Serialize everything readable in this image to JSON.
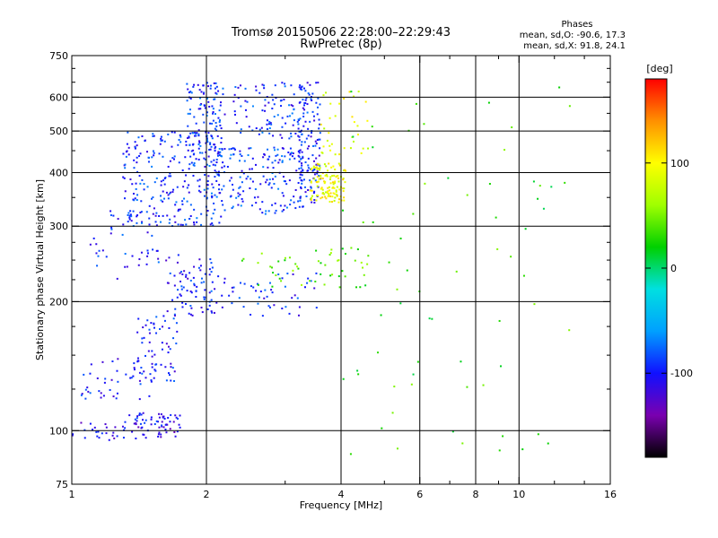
{
  "chart_data": {
    "type": "scatter",
    "title": "Tromsø 20150506 22:28:00–22:29:43",
    "subtitle": "RwPretec (8p)",
    "xlabel": "Frequency [MHz]",
    "ylabel": "Stationary phase Virtual Height [km]",
    "x_scale": "log",
    "y_scale": "log",
    "xlim": [
      1,
      16
    ],
    "ylim": [
      75,
      750
    ],
    "x_ticks": [
      1,
      2,
      4,
      6,
      8,
      10,
      16
    ],
    "x_tick_labels": [
      "1",
      "2",
      "4",
      "6",
      "8",
      "10",
      "16"
    ],
    "y_ticks": [
      75,
      100,
      200,
      300,
      400,
      500,
      600,
      750
    ],
    "y_tick_labels": [
      "75",
      "100",
      "200",
      "300",
      "400",
      "500",
      "600",
      "750"
    ],
    "x_minor_ticks": [
      3,
      5,
      7,
      9,
      12,
      14
    ],
    "y_minor_ticks": [
      125,
      150,
      175,
      225,
      250,
      275,
      350,
      450,
      550,
      650,
      700
    ],
    "grid_x": [
      2,
      4,
      6,
      8,
      10
    ],
    "grid_y": [
      100,
      200,
      300,
      400,
      500,
      600
    ],
    "phase_stats": {
      "header": "Phases",
      "line_o": "mean, sd,O: -90.6, 17.3",
      "line_x": "mean, sd,X:  91.8, 24.1"
    },
    "colorbar": {
      "label": "[deg]",
      "range": [
        -180,
        180
      ],
      "ticks": [
        100,
        0,
        -100
      ],
      "tick_labels": [
        "100",
        "0",
        "-100"
      ],
      "colors": [
        "#000000",
        "#7a00b0",
        "#1010ff",
        "#00a0ff",
        "#00e0e0",
        "#00d000",
        "#a0ff00",
        "#ffff00",
        "#ff9000",
        "#ff0000"
      ]
    },
    "traces": [
      {
        "name": "",
        "x_range": [
          1.0,
          1.75
        ],
        "y_range": [
          95,
          105
        ],
        "phase": -110,
        "density": 55
      },
      {
        "name": "",
        "x_range": [
          1.3,
          1.75
        ],
        "y_range": [
          103,
          110
        ],
        "phase": -105,
        "density": 40
      },
      {
        "name": "",
        "x_range": [
          1.05,
          1.55
        ],
        "y_range": [
          118,
          150
        ],
        "phase": -100,
        "density": 50
      },
      {
        "name": "",
        "x_range": [
          1.4,
          1.72
        ],
        "y_range": [
          130,
          185
        ],
        "phase": -98,
        "density": 55
      },
      {
        "name": "",
        "x_range": [
          1.6,
          2.1
        ],
        "y_range": [
          185,
          260
        ],
        "phase": -100,
        "density": 55
      },
      {
        "name": "",
        "x_range": [
          1.7,
          3.6
        ],
        "y_range": [
          185,
          235
        ],
        "phase": -95,
        "density": 80
      },
      {
        "name": "",
        "x_range": [
          1.1,
          1.6
        ],
        "y_range": [
          220,
          330
        ],
        "phase": -95,
        "density": 45
      },
      {
        "name": "",
        "x_range": [
          1.3,
          2.2
        ],
        "y_range": [
          300,
          500
        ],
        "phase": -92,
        "density": 260
      },
      {
        "name": "",
        "x_range": [
          1.8,
          2.2
        ],
        "y_range": [
          450,
          650
        ],
        "phase": -92,
        "density": 110
      },
      {
        "name": "",
        "x_range": [
          2.0,
          3.3
        ],
        "y_range": [
          320,
          460
        ],
        "phase": -90,
        "density": 180
      },
      {
        "name": "",
        "x_range": [
          2.3,
          3.4
        ],
        "y_range": [
          480,
          650
        ],
        "phase": -92,
        "density": 95
      },
      {
        "name": "",
        "x_range": [
          3.2,
          3.6
        ],
        "y_range": [
          340,
          650
        ],
        "phase": -98,
        "density": 130
      },
      {
        "name": "",
        "x_range": [
          3.4,
          4.1
        ],
        "y_range": [
          340,
          420
        ],
        "phase": 95,
        "density": 120
      },
      {
        "name": "",
        "x_range": [
          3.6,
          4.6
        ],
        "y_range": [
          440,
          620
        ],
        "phase": 90,
        "density": 35
      },
      {
        "name": "",
        "x_range": [
          2.4,
          4.6
        ],
        "y_range": [
          215,
          270
        ],
        "phase": 40,
        "density": 50
      },
      {
        "name": "",
        "x_range": [
          4.0,
          13.0
        ],
        "y_range": [
          85,
          650
        ],
        "phase": 30,
        "density": 70
      }
    ]
  }
}
